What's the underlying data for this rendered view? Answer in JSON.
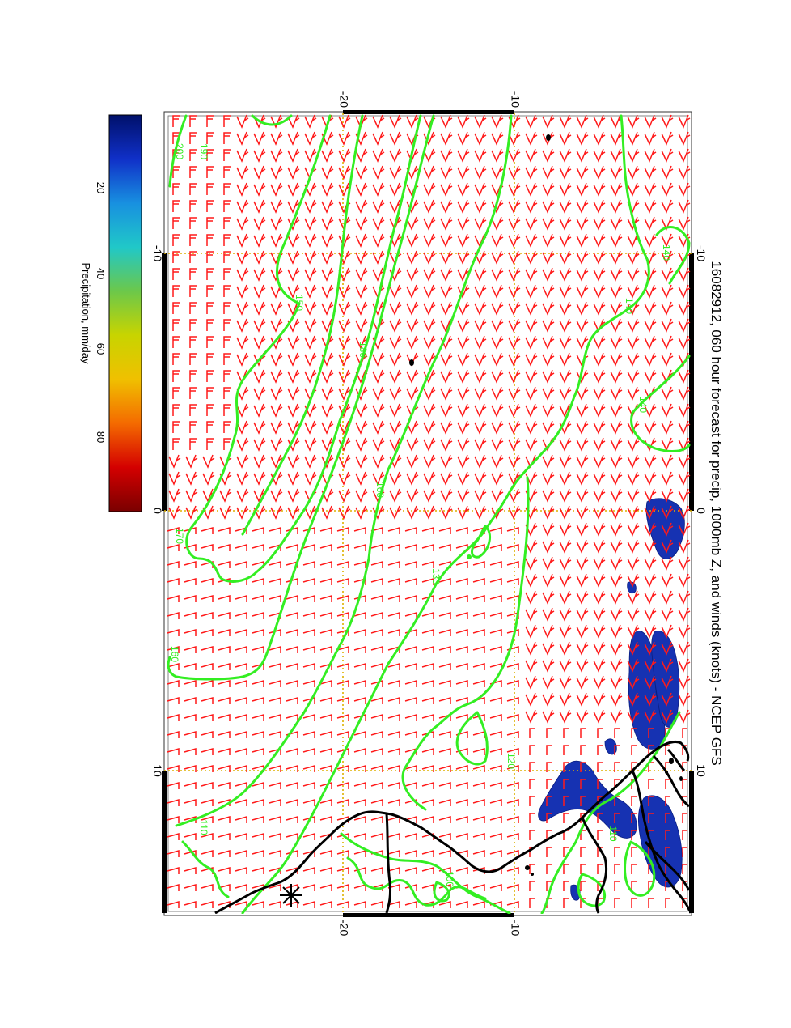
{
  "title": "16082912, 060 hour forecast for precip, 1000mb Z, and winds (knots) - NCEP GFS",
  "colorbar": {
    "label": "Precipitation, mm/day",
    "ticks": [
      "20",
      "40",
      "60",
      "80"
    ],
    "tick_values": [
      20,
      40,
      60,
      80
    ],
    "range": [
      0,
      100
    ],
    "stops": [
      "#7a0000",
      "#d40000",
      "#f46a00",
      "#f0c000",
      "#c8d400",
      "#6cc84a",
      "#20c8c8",
      "#1890e0",
      "#1030c8",
      "#00106a"
    ]
  },
  "axes": {
    "top_labels": [
      "-20",
      "-10"
    ],
    "bottom_labels": [
      "-20",
      "-10"
    ],
    "left_labels": [
      "-10",
      "0",
      "10"
    ],
    "right_labels": [
      "-10",
      "0",
      "10"
    ]
  },
  "contour_labels": [
    "200",
    "190",
    "180",
    "160",
    "150",
    "140",
    "140",
    "140",
    "130",
    "120",
    "110",
    "100",
    "110",
    "170",
    "160"
  ],
  "colors": {
    "wind_barbs": "#ff1a1a",
    "height_contours": "#33ee22",
    "coastline": "#000000",
    "grid": "#ddb000",
    "precip_fill": "#1530b0"
  }
}
